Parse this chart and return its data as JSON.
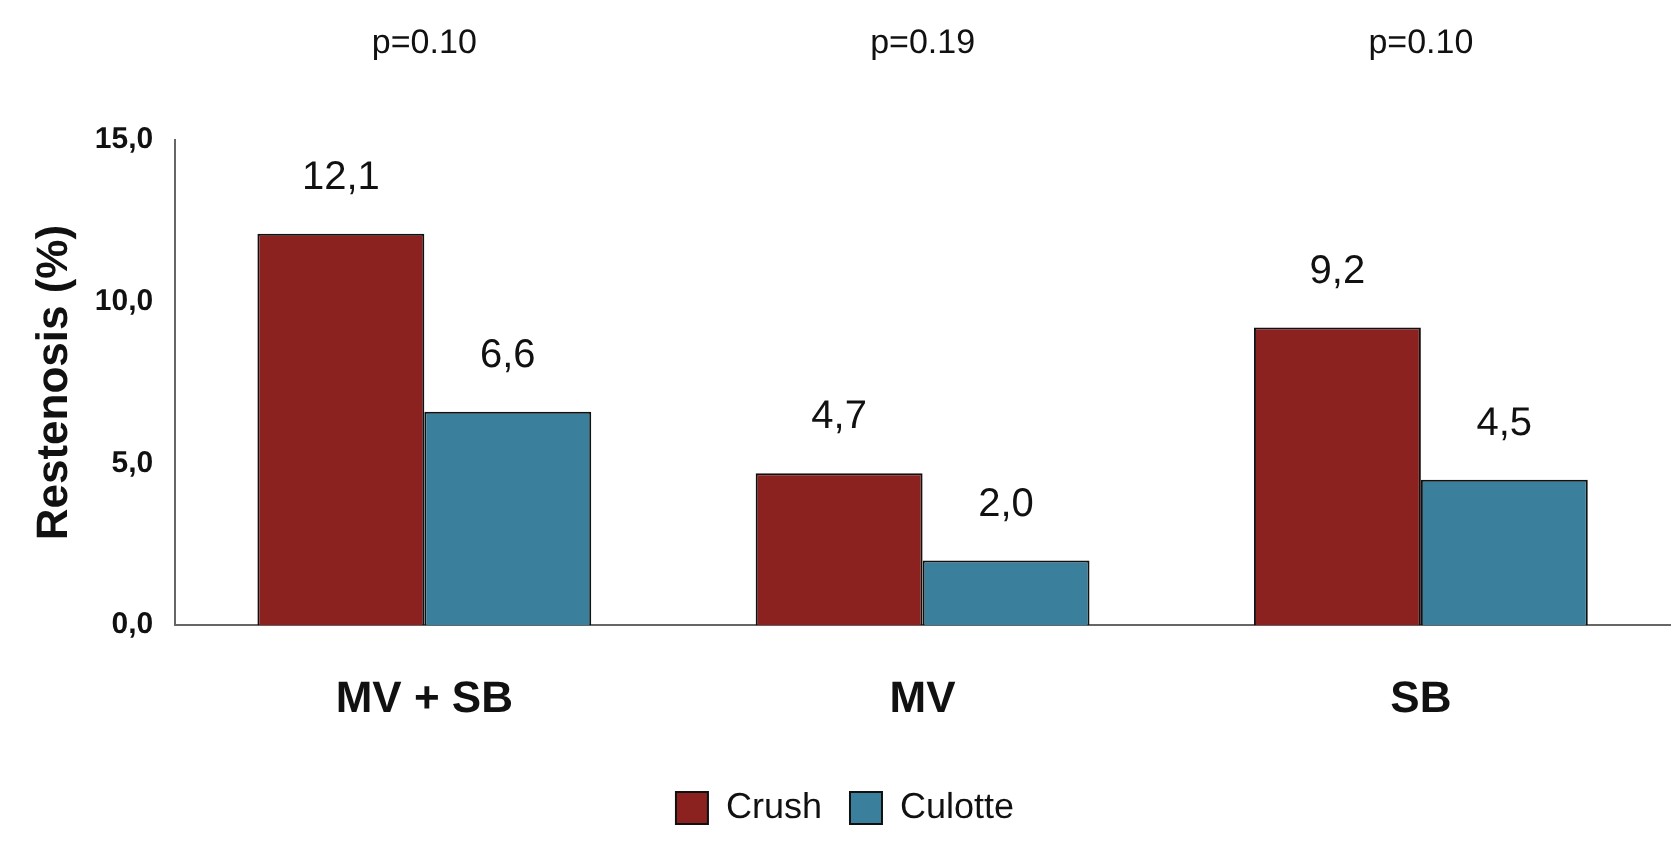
{
  "chart_data": {
    "type": "bar",
    "ylabel": "Restenosis (%)",
    "categories": [
      "MV + SB",
      "MV",
      "SB"
    ],
    "series": [
      {
        "name": "Crush",
        "color": "#8b2220",
        "values": [
          12.1,
          4.7,
          9.2
        ],
        "value_labels": [
          "12,1",
          "4,7",
          "9,2"
        ]
      },
      {
        "name": "Culotte",
        "color": "#3a7f9c",
        "values": [
          6.6,
          2.0,
          4.5
        ],
        "value_labels": [
          "6,6",
          "2,0",
          "4,5"
        ]
      }
    ],
    "ylim": [
      0,
      15
    ],
    "yticks": [
      {
        "value": 0,
        "label": "0,0"
      },
      {
        "value": 5,
        "label": "5,0"
      },
      {
        "value": 10,
        "label": "10,0"
      },
      {
        "value": 15,
        "label": "15,0"
      }
    ],
    "annotations": [
      "p=0.10",
      "p=0.19",
      "p=0.10"
    ],
    "grid": false,
    "legend": "bottom"
  }
}
